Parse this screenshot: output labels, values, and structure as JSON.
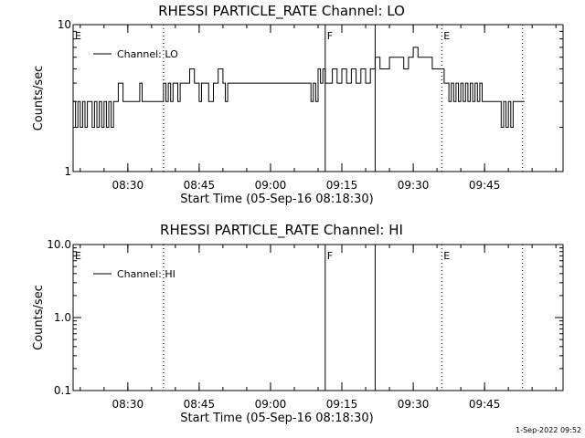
{
  "footer_timestamp": "1-Sep-2022 09:52",
  "chart_data": [
    {
      "type": "line",
      "title": "RHESSI PARTICLE_RATE Channel: LO",
      "xlabel": "Start Time (05-Sep-16 08:18:30)",
      "ylabel": "Counts/sec",
      "yscale": "log",
      "ylim": [
        1,
        10
      ],
      "yticks": [
        "1",
        "10"
      ],
      "xlim": [
        "08:18:30",
        "10:01:30"
      ],
      "xticks": [
        "08:30",
        "08:45",
        "09:00",
        "09:15",
        "09:30",
        "09:45"
      ],
      "legend": "top-left",
      "series": [
        {
          "name": "Channel: LO",
          "x": [
            "08:18:30",
            "08:19:00",
            "08:19:30",
            "08:20:00",
            "08:20:30",
            "08:21:00",
            "08:21:30",
            "08:22:00",
            "08:22:30",
            "08:23:00",
            "08:23:30",
            "08:24:00",
            "08:24:30",
            "08:25:00",
            "08:25:30",
            "08:26:00",
            "08:26:30",
            "08:27:00",
            "08:27:30",
            "08:28:00",
            "08:29:00",
            "08:30:00",
            "08:31:00",
            "08:32:00",
            "08:32:30",
            "08:33:00",
            "08:34:00",
            "08:35:00",
            "08:36:00",
            "08:37:00",
            "08:37:30",
            "08:38:00",
            "08:38:30",
            "08:39:00",
            "08:39:30",
            "08:40:00",
            "08:40:30",
            "08:41:00",
            "08:41:30",
            "08:42:00",
            "08:43:00",
            "08:44:00",
            "08:44:30",
            "08:45:00",
            "08:45:30",
            "08:46:00",
            "08:47:00",
            "08:48:00",
            "08:49:00",
            "08:50:00",
            "08:50:30",
            "08:51:00",
            "08:51:30",
            "08:52:00",
            "08:53:00",
            "08:54:00",
            "08:55:00",
            "08:56:00",
            "08:57:00",
            "08:58:00",
            "08:59:00",
            "09:00:00",
            "09:01:00",
            "09:02:00",
            "09:03:00",
            "09:04:00",
            "09:05:00",
            "09:06:00",
            "09:07:00",
            "09:08:00",
            "09:08:30",
            "09:09:00",
            "09:09:30",
            "09:10:00",
            "09:10:30",
            "09:11:00",
            "09:11:30",
            "09:12:00",
            "09:13:00",
            "09:14:00",
            "09:15:00",
            "09:16:00",
            "09:17:00",
            "09:18:00",
            "09:19:00",
            "09:20:00",
            "09:21:00",
            "09:22:00",
            "09:23:00",
            "09:24:00",
            "09:25:00",
            "09:26:00",
            "09:27:00",
            "09:28:00",
            "09:29:00",
            "09:30:00",
            "09:31:00",
            "09:32:00",
            "09:33:00",
            "09:34:00",
            "09:35:00",
            "09:36:00",
            "09:36:30",
            "09:37:00",
            "09:37:30",
            "09:38:00",
            "09:38:30",
            "09:39:00",
            "09:39:30",
            "09:40:00",
            "09:40:30",
            "09:41:00",
            "09:41:30",
            "09:42:00",
            "09:42:30",
            "09:43:00",
            "09:43:30",
            "09:44:00",
            "09:44:30",
            "09:45:00",
            "09:46:00",
            "09:47:00",
            "09:48:00",
            "09:48:30",
            "09:49:00",
            "09:49:30",
            "09:50:00",
            "09:50:30",
            "09:51:00",
            "09:52:00",
            "09:53:00"
          ],
          "y": [
            3,
            2,
            3,
            2,
            3,
            2,
            3,
            3,
            2,
            3,
            2,
            3,
            2,
            3,
            2,
            3,
            2,
            3,
            3,
            4,
            3,
            3,
            3,
            3,
            4,
            3,
            3,
            3,
            3,
            3,
            4,
            3,
            4,
            3,
            4,
            4,
            3,
            4,
            4,
            4,
            5,
            4,
            4,
            3,
            4,
            4,
            3,
            4,
            5,
            4,
            3,
            4,
            4,
            4,
            4,
            4,
            4,
            4,
            4,
            4,
            4,
            4,
            4,
            4,
            4,
            4,
            4,
            4,
            4,
            4,
            3,
            4,
            3,
            5,
            4,
            5,
            4,
            4,
            5,
            4,
            5,
            4,
            5,
            4,
            5,
            4,
            5,
            6,
            5,
            5,
            6,
            6,
            6,
            5,
            6,
            7,
            6,
            6,
            6,
            5,
            5,
            5,
            4,
            4,
            3,
            4,
            3,
            4,
            3,
            4,
            3,
            4,
            3,
            4,
            3,
            4,
            3,
            4,
            3,
            3,
            3,
            3,
            3,
            2,
            3,
            2,
            3,
            2,
            3,
            3,
            3
          ]
        }
      ],
      "markers": [
        {
          "label": "E",
          "time": "08:18:30",
          "style": "dotted"
        },
        {
          "label": "",
          "time": "08:37:30",
          "style": "dotted"
        },
        {
          "label": "F",
          "time": "09:11:30",
          "style": "solid"
        },
        {
          "label": "",
          "time": "09:22:00",
          "style": "solid"
        },
        {
          "label": "E",
          "time": "09:36:00",
          "style": "dotted"
        },
        {
          "label": "",
          "time": "09:53:00",
          "style": "dotted"
        }
      ]
    },
    {
      "type": "line",
      "title": "RHESSI PARTICLE_RATE Channel: HI",
      "xlabel": "Start Time (05-Sep-16 08:18:30)",
      "ylabel": "Counts/sec",
      "yscale": "log",
      "ylim": [
        0.1,
        10
      ],
      "yticks": [
        "0.1",
        "1.0",
        "10.0"
      ],
      "xlim": [
        "08:18:30",
        "10:01:30"
      ],
      "xticks": [
        "08:30",
        "08:45",
        "09:00",
        "09:15",
        "09:30",
        "09:45"
      ],
      "legend": "top-left",
      "series": [
        {
          "name": "Channel: HI",
          "x": [],
          "y": []
        }
      ],
      "markers": [
        {
          "label": "E",
          "time": "08:18:30",
          "style": "dotted"
        },
        {
          "label": "",
          "time": "08:37:30",
          "style": "dotted"
        },
        {
          "label": "F",
          "time": "09:11:30",
          "style": "solid"
        },
        {
          "label": "",
          "time": "09:22:00",
          "style": "solid"
        },
        {
          "label": "E",
          "time": "09:36:00",
          "style": "dotted"
        },
        {
          "label": "",
          "time": "09:53:00",
          "style": "dotted"
        }
      ]
    }
  ]
}
